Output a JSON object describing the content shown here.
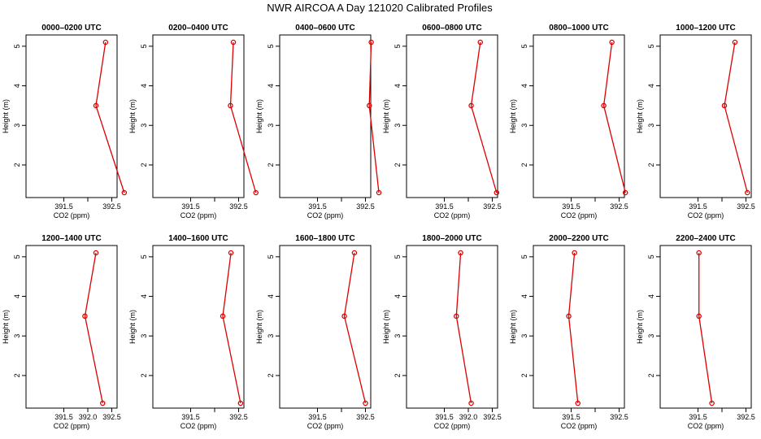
{
  "figure": {
    "title": "NWR AIRCOA A  Day 121020  Calibrated Profiles"
  },
  "style": {
    "series_color": "#dd0000",
    "frame_color": "#000000",
    "background": "#ffffff"
  },
  "chart_data": [
    {
      "type": "line",
      "title": "0000–0200 UTC",
      "xlabel": "CO2 (ppm)",
      "ylabel": "Height (m)",
      "xlim": [
        391.0,
        392.9
      ],
      "ylim": [
        1.3,
        5.1
      ],
      "xticks": [
        "391.5",
        "392.5"
      ],
      "xticks_unlabeled": [
        392.0,
        393.0
      ],
      "yticks": [
        "2",
        "3",
        "4",
        "5"
      ],
      "series": [
        {
          "values": [
            {
              "x": 392.76,
              "y": 1.3
            },
            {
              "x": 392.17,
              "y": 3.5
            },
            {
              "x": 392.37,
              "y": 5.1
            }
          ]
        }
      ]
    },
    {
      "type": "line",
      "title": "0200–0400 UTC",
      "xlabel": "CO2 (ppm)",
      "ylabel": "Height (m)",
      "xlim": [
        391.0,
        392.9
      ],
      "ylim": [
        1.3,
        5.1
      ],
      "xticks": [
        "391.5",
        "392.5"
      ],
      "xticks_unlabeled": [
        392.0,
        393.0
      ],
      "yticks": [
        "2",
        "3",
        "4",
        "5"
      ],
      "series": [
        {
          "values": [
            {
              "x": 392.86,
              "y": 1.3
            },
            {
              "x": 392.33,
              "y": 3.5
            },
            {
              "x": 392.39,
              "y": 5.1
            }
          ]
        }
      ]
    },
    {
      "type": "line",
      "title": "0400–0600 UTC",
      "xlabel": "CO2 (ppm)",
      "ylabel": "Height (m)",
      "xlim": [
        391.0,
        392.9
      ],
      "ylim": [
        1.3,
        5.1
      ],
      "xticks": [
        "391.5",
        "392.5"
      ],
      "xticks_unlabeled": [
        392.0,
        393.0
      ],
      "yticks": [
        "2",
        "3",
        "4",
        "5"
      ],
      "series": [
        {
          "values": [
            {
              "x": 392.78,
              "y": 1.3
            },
            {
              "x": 392.58,
              "y": 3.5
            },
            {
              "x": 392.62,
              "y": 5.1
            }
          ]
        }
      ]
    },
    {
      "type": "line",
      "title": "0600–0800 UTC",
      "xlabel": "CO2 (ppm)",
      "ylabel": "Height (m)",
      "xlim": [
        391.0,
        392.9
      ],
      "ylim": [
        1.3,
        5.1
      ],
      "xticks": [
        "391.5",
        "392.5"
      ],
      "xticks_unlabeled": [
        392.0,
        393.0
      ],
      "yticks": [
        "2",
        "3",
        "4",
        "5"
      ],
      "series": [
        {
          "values": [
            {
              "x": 392.59,
              "y": 1.3
            },
            {
              "x": 392.06,
              "y": 3.5
            },
            {
              "x": 392.25,
              "y": 5.1
            }
          ]
        }
      ]
    },
    {
      "type": "line",
      "title": "0800–1000 UTC",
      "xlabel": "CO2 (ppm)",
      "ylabel": "Height (m)",
      "xlim": [
        391.0,
        392.9
      ],
      "ylim": [
        1.3,
        5.1
      ],
      "xticks": [
        "391.5",
        "392.5"
      ],
      "xticks_unlabeled": [
        392.0,
        393.0
      ],
      "yticks": [
        "2",
        "3",
        "4",
        "5"
      ],
      "series": [
        {
          "values": [
            {
              "x": 392.63,
              "y": 1.3
            },
            {
              "x": 392.18,
              "y": 3.5
            },
            {
              "x": 392.35,
              "y": 5.1
            }
          ]
        }
      ]
    },
    {
      "type": "line",
      "title": "1000–1200 UTC",
      "xlabel": "CO2 (ppm)",
      "ylabel": "Height (m)",
      "xlim": [
        391.0,
        392.9
      ],
      "ylim": [
        1.3,
        5.1
      ],
      "xticks": [
        "391.5",
        "392.5"
      ],
      "xticks_unlabeled": [
        392.0,
        393.0
      ],
      "yticks": [
        "2",
        "3",
        "4",
        "5"
      ],
      "series": [
        {
          "values": [
            {
              "x": 392.53,
              "y": 1.3
            },
            {
              "x": 392.05,
              "y": 3.5
            },
            {
              "x": 392.27,
              "y": 5.1
            }
          ]
        }
      ]
    },
    {
      "type": "line",
      "title": "1200–1400 UTC",
      "xlabel": "CO2 (ppm)",
      "ylabel": "Height (m)",
      "xlim": [
        391.0,
        392.9
      ],
      "ylim": [
        1.3,
        5.1
      ],
      "xticks": [
        "391.5",
        "392.0",
        "392.5"
      ],
      "xticks_unlabeled": [
        393.0
      ],
      "yticks": [
        "2",
        "3",
        "4",
        "5"
      ],
      "series": [
        {
          "values": [
            {
              "x": 392.31,
              "y": 1.3
            },
            {
              "x": 391.94,
              "y": 3.5
            },
            {
              "x": 392.17,
              "y": 5.1
            }
          ]
        }
      ]
    },
    {
      "type": "line",
      "title": "1400–1600 UTC",
      "xlabel": "CO2 (ppm)",
      "ylabel": "Height (m)",
      "xlim": [
        391.0,
        392.9
      ],
      "ylim": [
        1.3,
        5.1
      ],
      "xticks": [
        "391.5",
        "392.5"
      ],
      "xticks_unlabeled": [
        392.0,
        393.0
      ],
      "yticks": [
        "2",
        "3",
        "4",
        "5"
      ],
      "series": [
        {
          "values": [
            {
              "x": 392.54,
              "y": 1.3
            },
            {
              "x": 392.17,
              "y": 3.5
            },
            {
              "x": 392.34,
              "y": 5.1
            }
          ]
        }
      ]
    },
    {
      "type": "line",
      "title": "1600–1800 UTC",
      "xlabel": "CO2 (ppm)",
      "ylabel": "Height (m)",
      "xlim": [
        391.0,
        392.9
      ],
      "ylim": [
        1.3,
        5.1
      ],
      "xticks": [
        "391.5",
        "392.5"
      ],
      "xticks_unlabeled": [
        392.0,
        393.0
      ],
      "yticks": [
        "2",
        "3",
        "4",
        "5"
      ],
      "series": [
        {
          "values": [
            {
              "x": 392.5,
              "y": 1.3
            },
            {
              "x": 392.06,
              "y": 3.5
            },
            {
              "x": 392.27,
              "y": 5.1
            }
          ]
        }
      ]
    },
    {
      "type": "line",
      "title": "1800–2000 UTC",
      "xlabel": "CO2 (ppm)",
      "ylabel": "Height (m)",
      "xlim": [
        391.0,
        392.9
      ],
      "ylim": [
        1.3,
        5.1
      ],
      "xticks": [
        "391.5",
        "392.0",
        "392.5"
      ],
      "xticks_unlabeled": [
        393.0
      ],
      "yticks": [
        "2",
        "3",
        "4",
        "5"
      ],
      "series": [
        {
          "values": [
            {
              "x": 392.06,
              "y": 1.3
            },
            {
              "x": 391.75,
              "y": 3.5
            },
            {
              "x": 391.84,
              "y": 5.1
            }
          ]
        }
      ]
    },
    {
      "type": "line",
      "title": "2000–2200 UTC",
      "xlabel": "CO2 (ppm)",
      "ylabel": "Height (m)",
      "xlim": [
        391.0,
        392.9
      ],
      "ylim": [
        1.3,
        5.1
      ],
      "xticks": [
        "391.5",
        "392.5"
      ],
      "xticks_unlabeled": [
        392.0,
        393.0
      ],
      "yticks": [
        "2",
        "3",
        "4",
        "5"
      ],
      "series": [
        {
          "values": [
            {
              "x": 391.64,
              "y": 1.3
            },
            {
              "x": 391.45,
              "y": 3.5
            },
            {
              "x": 391.57,
              "y": 5.1
            }
          ]
        }
      ]
    },
    {
      "type": "line",
      "title": "2200–2400 UTC",
      "xlabel": "CO2 (ppm)",
      "ylabel": "Height (m)",
      "xlim": [
        391.0,
        392.9
      ],
      "ylim": [
        1.3,
        5.1
      ],
      "xticks": [
        "391.5",
        "392.5"
      ],
      "xticks_unlabeled": [
        392.0,
        393.0
      ],
      "yticks": [
        "2",
        "3",
        "4",
        "5"
      ],
      "series": [
        {
          "values": [
            {
              "x": 391.79,
              "y": 1.3
            },
            {
              "x": 391.52,
              "y": 3.5
            },
            {
              "x": 391.52,
              "y": 5.1
            }
          ]
        }
      ]
    }
  ]
}
